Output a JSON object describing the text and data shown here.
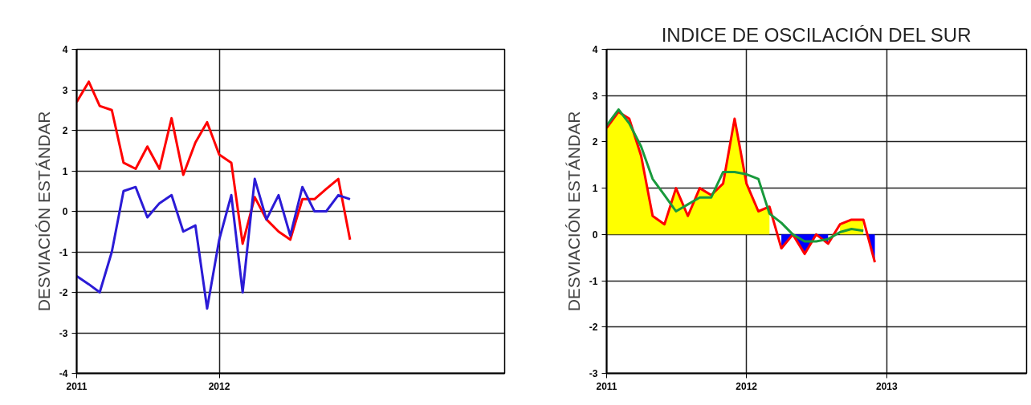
{
  "chart_data": [
    {
      "type": "line",
      "ylabel": "DESVIACIÓN ESTÁNDAR",
      "x": [
        "2011-01",
        "2011-02",
        "2011-03",
        "2011-04",
        "2011-05",
        "2011-06",
        "2011-07",
        "2011-08",
        "2011-09",
        "2011-10",
        "2011-11",
        "2011-12",
        "2012-01",
        "2012-02",
        "2012-03",
        "2012-04",
        "2012-05",
        "2012-06",
        "2012-07",
        "2012-08",
        "2012-09",
        "2012-10",
        "2012-11",
        "2012-12"
      ],
      "series": [
        {
          "color": "#ff0000",
          "values": [
            2.7,
            3.2,
            2.6,
            2.5,
            1.2,
            1.05,
            1.6,
            1.05,
            2.3,
            0.9,
            1.7,
            2.2,
            1.4,
            1.2,
            -0.8,
            0.35,
            -0.2,
            -0.5,
            -0.7,
            0.3,
            0.3,
            0.55,
            0.8,
            -0.7
          ]
        },
        {
          "color": "#2b1bd6",
          "values": [
            -1.6,
            -1.8,
            -2.0,
            -1.0,
            0.5,
            0.6,
            -0.15,
            0.2,
            0.4,
            -0.5,
            -0.35,
            -2.4,
            -0.7,
            0.4,
            -2.0,
            0.8,
            -0.2,
            0.4,
            -0.6,
            0.6,
            0.0,
            0.0,
            0.4,
            0.3
          ]
        }
      ],
      "xlim": [
        "2011",
        "2014"
      ],
      "ylim": [
        -4,
        4
      ],
      "xticks": [
        {
          "value": "2011",
          "label": "2011"
        },
        {
          "value": "2012",
          "label": "2012"
        }
      ],
      "yticks": [
        -4,
        -3,
        -2,
        -1,
        0,
        1,
        2,
        3,
        4
      ],
      "grid": true
    },
    {
      "type": "line",
      "title": "INDICE DE OSCILACIÓN DEL SUR",
      "ylabel": "DESVIACIÓN ESTÁNDAR",
      "x": [
        "2011-01",
        "2011-02",
        "2011-03",
        "2011-04",
        "2011-05",
        "2011-06",
        "2011-07",
        "2011-08",
        "2011-09",
        "2011-10",
        "2011-11",
        "2011-12",
        "2012-01",
        "2012-02",
        "2012-03",
        "2012-04",
        "2012-05",
        "2012-06",
        "2012-07",
        "2012-08",
        "2012-09",
        "2012-10",
        "2012-11",
        "2012-12"
      ],
      "series": [
        {
          "type": "area",
          "color": "#ffff00",
          "values": [
            2.3,
            2.65,
            2.5,
            1.7,
            0.4,
            0.22,
            1.0,
            0.4,
            1.0,
            0.85,
            1.1,
            2.5,
            1.1,
            0.5,
            0.6,
            null,
            null,
            null,
            null,
            null,
            0.22,
            0.32,
            0.32,
            null
          ]
        },
        {
          "type": "area",
          "color": "#0000ff",
          "values": [
            null,
            null,
            null,
            null,
            null,
            null,
            null,
            null,
            null,
            null,
            null,
            null,
            null,
            null,
            null,
            -0.3,
            0.0,
            -0.42,
            0.0,
            -0.2,
            null,
            null,
            null,
            -0.6
          ]
        },
        {
          "type": "line",
          "color": "#ff0000",
          "values": [
            2.3,
            2.65,
            2.5,
            1.7,
            0.4,
            0.22,
            1.0,
            0.4,
            1.0,
            0.85,
            1.1,
            2.5,
            1.1,
            0.5,
            0.6,
            -0.3,
            0.0,
            -0.42,
            0.0,
            -0.2,
            0.22,
            0.32,
            0.32,
            -0.6
          ]
        },
        {
          "type": "line",
          "color": "#199a3c",
          "values": [
            2.35,
            2.7,
            2.4,
            1.9,
            1.2,
            0.85,
            0.5,
            0.65,
            0.8,
            0.8,
            1.35,
            1.35,
            1.3,
            1.2,
            0.45,
            0.25,
            0.0,
            -0.15,
            -0.15,
            -0.1,
            0.05,
            0.12,
            0.08,
            null
          ]
        }
      ],
      "xlim": [
        "2011",
        "2014"
      ],
      "ylim": [
        -3,
        4
      ],
      "xticks": [
        {
          "value": "2011",
          "label": "2011"
        },
        {
          "value": "2012",
          "label": "2012"
        },
        {
          "value": "2013",
          "label": "2013"
        }
      ],
      "yticks": [
        -3,
        -2,
        -1,
        0,
        1,
        2,
        3,
        4
      ],
      "grid": true
    }
  ]
}
